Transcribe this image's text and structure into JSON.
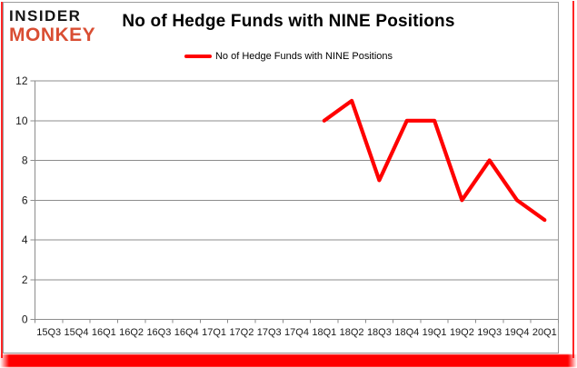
{
  "brand": {
    "line1": "INSIDER",
    "line2": "MONKEY",
    "accent_color": "#d94e33",
    "text_color": "#141414"
  },
  "header": {
    "title": "No of Hedge Funds with NINE Positions"
  },
  "legend": {
    "label": "No of Hedge Funds with NINE Positions",
    "line_color": "#ff0000"
  },
  "frame": {
    "color": "#ff0000",
    "card_border_color": "#9c9c9c"
  },
  "chart_data": {
    "type": "line",
    "title": "No of Hedge Funds with NINE Positions",
    "categories": [
      "15Q3",
      "15Q4",
      "16Q1",
      "16Q2",
      "16Q3",
      "16Q4",
      "17Q1",
      "17Q2",
      "17Q3",
      "17Q4",
      "18Q1",
      "18Q2",
      "18Q3",
      "18Q4",
      "19Q1",
      "19Q2",
      "19Q3",
      "19Q4",
      "20Q1"
    ],
    "series": [
      {
        "name": "No of Hedge Funds with NINE Positions",
        "color": "#ff0000",
        "values": [
          null,
          null,
          null,
          null,
          null,
          null,
          null,
          null,
          null,
          null,
          10,
          11,
          7,
          10,
          10,
          6,
          8,
          6,
          5
        ]
      }
    ],
    "xlabel": "",
    "ylabel": "",
    "ylim": [
      0,
      12
    ],
    "yticks": [
      0,
      2,
      4,
      6,
      8,
      10,
      12
    ],
    "grid": true,
    "grid_color": "#8c8c8c",
    "legend_position": "top-center"
  }
}
